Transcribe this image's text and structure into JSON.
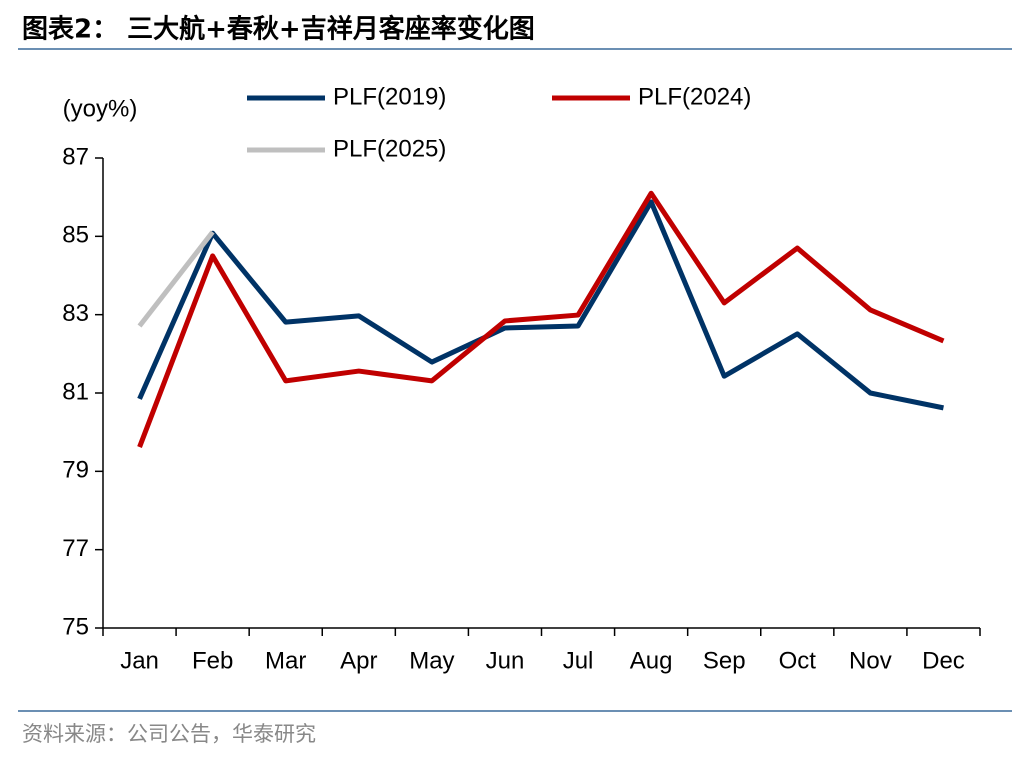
{
  "chart_data": {
    "type": "line",
    "title": "图表2： 三大航+春秋+吉祥月客座率变化图",
    "y_label": "(yoy%)",
    "source": "资料来源：公司公告，华泰研究",
    "categories": [
      "Jan",
      "Feb",
      "Mar",
      "Apr",
      "May",
      "Jun",
      "Jul",
      "Aug",
      "Sep",
      "Oct",
      "Nov",
      "Dec"
    ],
    "series": [
      {
        "name": "PLF(2019)",
        "color": "#003366",
        "values": [
          80.85,
          85.08,
          82.81,
          82.97,
          81.79,
          82.66,
          82.71,
          85.88,
          81.43,
          82.51,
          81.0,
          80.62
        ]
      },
      {
        "name": "PLF(2024)",
        "color": "#c00000",
        "values": [
          79.62,
          84.5,
          81.31,
          81.56,
          81.31,
          82.84,
          82.99,
          86.1,
          83.3,
          84.7,
          83.12,
          82.33
        ]
      },
      {
        "name": "PLF(2025)",
        "color": "#bfbfbf",
        "values": [
          82.71,
          85.11,
          null,
          null,
          null,
          null,
          null,
          null,
          null,
          null,
          null,
          null
        ]
      }
    ],
    "ylim": [
      75,
      87
    ],
    "yticks": [
      75,
      77,
      79,
      81,
      83,
      85,
      87
    ],
    "grid": false
  }
}
